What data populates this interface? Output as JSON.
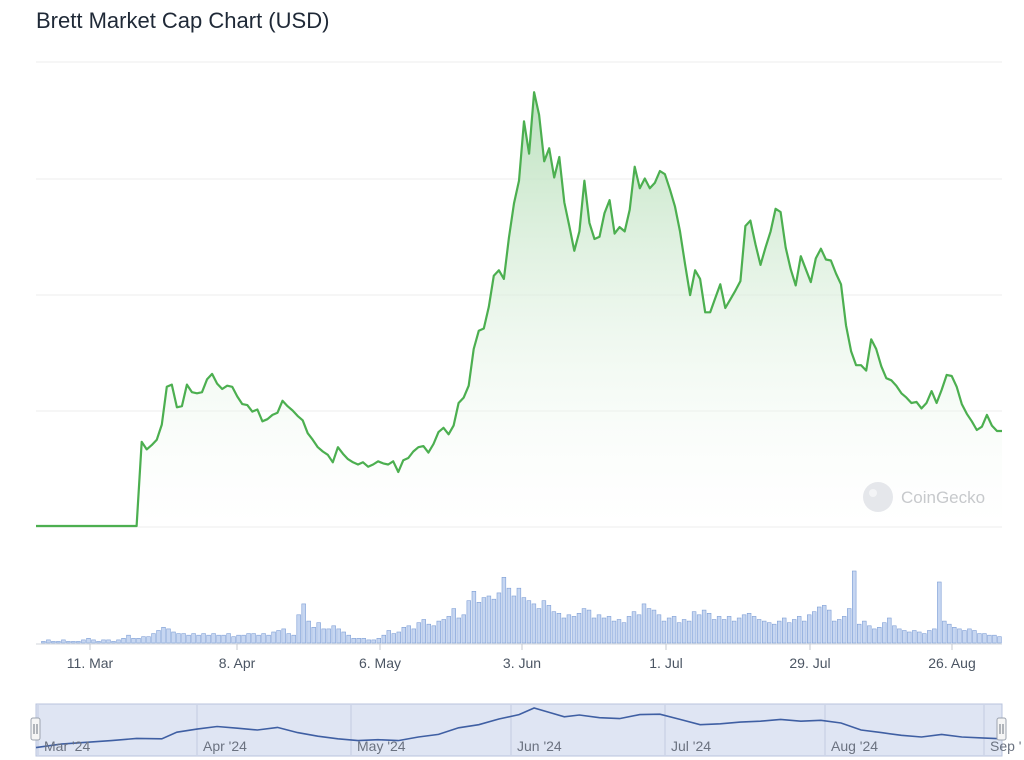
{
  "chart_title": "Brett Market Cap Chart (USD)",
  "watermark": "CoinGecko",
  "colors": {
    "line": "#4caf50",
    "area_top": "#c8e6c9",
    "volume_fill": "#c6d6f1",
    "volume_stroke": "#7e9ed6",
    "navigator_bg": "#dfe5f3",
    "navigator_line": "#3f5fa3",
    "grid": "#ececec"
  },
  "chart_data": {
    "type": "area",
    "title": "Brett Market Cap Chart (USD)",
    "x_ticks": [
      "11. Mar",
      "8. Apr",
      "6. May",
      "3. Jun",
      "1. Jul",
      "29. Jul",
      "26. Aug"
    ],
    "navigator_ticks": [
      "Mar '24",
      "Apr '24",
      "May '24",
      "Jun '24",
      "Jul '24",
      "Aug '24",
      "Sep '"
    ],
    "grid": true,
    "y_axis_labels_visible": false,
    "series": [
      {
        "values": [
          0,
          0,
          0,
          0,
          0,
          0,
          0,
          0,
          0,
          0,
          0,
          0,
          0,
          0,
          0,
          0,
          0,
          0,
          0,
          0,
          0,
          0,
          0,
          0,
          0,
          0,
          0,
          0,
          0,
          0,
          0,
          0,
          0,
          0,
          0,
          0,
          0,
          0,
          0,
          0,
          0,
          0,
          0,
          0,
          0,
          0,
          0,
          0,
          0,
          0,
          0,
          0,
          0,
          0,
          0,
          0,
          0,
          0,
          0,
          0,
          0,
          0,
          0,
          0,
          0,
          0,
          0,
          0,
          0,
          0,
          0,
          0,
          0,
          0,
          0,
          0,
          0,
          0,
          0,
          0,
          0,
          0,
          0,
          0,
          0,
          0,
          0,
          0,
          0,
          0,
          0,
          0,
          0,
          0,
          0,
          0,
          0,
          0,
          0,
          0,
          0,
          0,
          0,
          0,
          0,
          0,
          0,
          0,
          0,
          0,
          0,
          0,
          0,
          0,
          0,
          0,
          0,
          0,
          0,
          0,
          0,
          0,
          0,
          0,
          0,
          0,
          0,
          0,
          0
        ]
      }
    ],
    "points": [
      [
        0,
        0.0
      ],
      [
        20,
        0.0
      ],
      [
        21,
        0.78
      ],
      [
        22,
        0.71
      ],
      [
        23,
        0.75
      ],
      [
        24,
        0.8
      ],
      [
        25,
        0.94
      ],
      [
        26,
        1.29
      ],
      [
        27,
        1.31
      ],
      [
        28,
        1.1
      ],
      [
        29,
        1.11
      ],
      [
        30,
        1.31
      ],
      [
        31,
        1.24
      ],
      [
        32,
        1.23
      ],
      [
        33,
        1.24
      ],
      [
        34,
        1.36
      ],
      [
        35,
        1.41
      ],
      [
        36,
        1.32
      ],
      [
        37,
        1.27
      ],
      [
        38,
        1.3
      ],
      [
        39,
        1.29
      ],
      [
        40,
        1.2
      ],
      [
        41,
        1.13
      ],
      [
        42,
        1.12
      ],
      [
        43,
        1.06
      ],
      [
        44,
        1.08
      ],
      [
        45,
        0.97
      ],
      [
        46,
        0.99
      ],
      [
        47,
        1.03
      ],
      [
        48,
        1.05
      ],
      [
        49,
        1.16
      ],
      [
        50,
        1.11
      ],
      [
        51,
        1.07
      ],
      [
        52,
        1.02
      ],
      [
        53,
        0.98
      ],
      [
        54,
        0.86
      ],
      [
        55,
        0.8
      ],
      [
        56,
        0.73
      ],
      [
        57,
        0.69
      ],
      [
        58,
        0.66
      ],
      [
        59,
        0.59
      ],
      [
        60,
        0.73
      ],
      [
        61,
        0.67
      ],
      [
        62,
        0.62
      ],
      [
        63,
        0.59
      ],
      [
        64,
        0.57
      ],
      [
        65,
        0.59
      ],
      [
        66,
        0.55
      ],
      [
        67,
        0.57
      ],
      [
        68,
        0.6
      ],
      [
        69,
        0.58
      ],
      [
        70,
        0.57
      ],
      [
        71,
        0.6
      ],
      [
        72,
        0.5
      ],
      [
        73,
        0.61
      ],
      [
        74,
        0.63
      ],
      [
        75,
        0.69
      ],
      [
        76,
        0.73
      ],
      [
        77,
        0.74
      ],
      [
        78,
        0.68
      ],
      [
        79,
        0.76
      ],
      [
        80,
        0.87
      ],
      [
        81,
        0.91
      ],
      [
        82,
        0.85
      ],
      [
        83,
        0.93
      ],
      [
        84,
        1.14
      ],
      [
        85,
        1.19
      ],
      [
        86,
        1.3
      ],
      [
        87,
        1.64
      ],
      [
        88,
        1.81
      ],
      [
        89,
        1.83
      ],
      [
        90,
        2.03
      ],
      [
        91,
        2.32
      ],
      [
        92,
        2.37
      ],
      [
        93,
        2.29
      ],
      [
        94,
        2.67
      ],
      [
        95,
        2.99
      ],
      [
        96,
        3.2
      ],
      [
        97,
        3.75
      ],
      [
        98,
        3.45
      ],
      [
        99,
        4.02
      ],
      [
        100,
        3.81
      ],
      [
        101,
        3.38
      ],
      [
        102,
        3.5
      ],
      [
        103,
        3.23
      ],
      [
        104,
        3.42
      ],
      [
        105,
        3.0
      ],
      [
        106,
        2.78
      ],
      [
        107,
        2.55
      ],
      [
        108,
        2.73
      ],
      [
        109,
        3.2
      ],
      [
        110,
        2.81
      ],
      [
        111,
        2.66
      ],
      [
        112,
        2.68
      ],
      [
        113,
        2.9
      ],
      [
        114,
        3.02
      ],
      [
        115,
        2.71
      ],
      [
        116,
        2.77
      ],
      [
        117,
        2.73
      ],
      [
        118,
        2.93
      ],
      [
        119,
        3.33
      ],
      [
        120,
        3.13
      ],
      [
        121,
        3.22
      ],
      [
        122,
        3.13
      ],
      [
        123,
        3.18
      ],
      [
        124,
        3.29
      ],
      [
        125,
        3.26
      ],
      [
        126,
        3.12
      ],
      [
        127,
        2.96
      ],
      [
        128,
        2.73
      ],
      [
        129,
        2.43
      ],
      [
        130,
        2.14
      ],
      [
        131,
        2.37
      ],
      [
        132,
        2.29
      ],
      [
        133,
        1.98
      ],
      [
        134,
        1.98
      ],
      [
        135,
        2.11
      ],
      [
        136,
        2.24
      ],
      [
        137,
        2.02
      ],
      [
        138,
        2.1
      ],
      [
        139,
        2.18
      ],
      [
        140,
        2.27
      ],
      [
        141,
        2.78
      ],
      [
        142,
        2.83
      ],
      [
        143,
        2.61
      ],
      [
        144,
        2.42
      ],
      [
        145,
        2.58
      ],
      [
        146,
        2.73
      ],
      [
        147,
        2.94
      ],
      [
        148,
        2.91
      ],
      [
        149,
        2.58
      ],
      [
        150,
        2.38
      ],
      [
        151,
        2.23
      ],
      [
        152,
        2.5
      ],
      [
        153,
        2.38
      ],
      [
        154,
        2.26
      ],
      [
        155,
        2.48
      ],
      [
        156,
        2.57
      ],
      [
        157,
        2.47
      ],
      [
        158,
        2.46
      ],
      [
        159,
        2.34
      ],
      [
        160,
        2.24
      ],
      [
        161,
        1.86
      ],
      [
        162,
        1.62
      ],
      [
        163,
        1.49
      ],
      [
        164,
        1.49
      ],
      [
        165,
        1.44
      ],
      [
        166,
        1.73
      ],
      [
        167,
        1.64
      ],
      [
        168,
        1.48
      ],
      [
        169,
        1.37
      ],
      [
        170,
        1.35
      ],
      [
        171,
        1.3
      ],
      [
        172,
        1.23
      ],
      [
        173,
        1.19
      ],
      [
        174,
        1.14
      ],
      [
        175,
        1.15
      ],
      [
        176,
        1.09
      ],
      [
        177,
        1.14
      ],
      [
        178,
        1.25
      ],
      [
        179,
        1.14
      ],
      [
        180,
        1.26
      ],
      [
        181,
        1.4
      ],
      [
        182,
        1.39
      ],
      [
        183,
        1.29
      ],
      [
        184,
        1.13
      ],
      [
        185,
        1.04
      ],
      [
        186,
        0.97
      ],
      [
        187,
        0.89
      ],
      [
        188,
        0.92
      ],
      [
        189,
        1.03
      ],
      [
        190,
        0.93
      ],
      [
        191,
        0.88
      ],
      [
        192,
        0.88
      ]
    ],
    "volume": [
      0,
      1,
      2,
      1,
      1,
      2,
      1,
      1,
      1,
      2,
      3,
      2,
      1,
      2,
      2,
      1,
      2,
      3,
      5,
      3,
      3,
      4,
      4,
      6,
      8,
      10,
      9,
      7,
      6,
      6,
      5,
      6,
      5,
      6,
      5,
      6,
      5,
      5,
      6,
      4,
      5,
      5,
      6,
      6,
      5,
      6,
      5,
      7,
      8,
      9,
      6,
      5,
      18,
      25,
      14,
      10,
      13,
      9,
      9,
      11,
      9,
      7,
      5,
      3,
      3,
      3,
      2,
      2,
      3,
      5,
      8,
      6,
      7,
      10,
      11,
      9,
      13,
      15,
      12,
      11,
      14,
      15,
      17,
      22,
      16,
      18,
      27,
      33,
      26,
      29,
      30,
      28,
      32,
      42,
      35,
      30,
      35,
      29,
      27,
      25,
      22,
      27,
      24,
      20,
      19,
      16,
      18,
      17,
      19,
      22,
      21,
      16,
      18,
      16,
      17,
      14,
      15,
      13,
      17,
      20,
      18,
      25,
      22,
      21,
      18,
      14,
      16,
      17,
      13,
      15,
      14,
      20,
      18,
      21,
      19,
      15,
      17,
      15,
      17,
      14,
      16,
      18,
      19,
      17,
      15,
      14,
      13,
      12,
      14,
      16,
      13,
      15,
      17,
      14,
      18,
      20,
      23,
      24,
      21,
      14,
      15,
      17,
      22,
      46,
      12,
      14,
      11,
      9,
      10,
      13,
      16,
      11,
      9,
      8,
      7,
      8,
      7,
      6,
      8,
      9,
      39,
      14,
      12,
      10,
      9,
      8,
      9,
      8,
      6,
      6,
      5,
      5,
      4
    ],
    "navigator": [
      [
        0,
        0.1
      ],
      [
        5,
        0.18
      ],
      [
        10,
        0.22
      ],
      [
        15,
        0.26
      ],
      [
        20,
        0.31
      ],
      [
        25,
        0.3
      ],
      [
        28,
        0.45
      ],
      [
        32,
        0.52
      ],
      [
        36,
        0.58
      ],
      [
        40,
        0.54
      ],
      [
        44,
        0.5
      ],
      [
        48,
        0.56
      ],
      [
        52,
        0.44
      ],
      [
        56,
        0.36
      ],
      [
        60,
        0.3
      ],
      [
        64,
        0.26
      ],
      [
        68,
        0.28
      ],
      [
        72,
        0.26
      ],
      [
        76,
        0.34
      ],
      [
        80,
        0.4
      ],
      [
        84,
        0.55
      ],
      [
        88,
        0.62
      ],
      [
        92,
        0.75
      ],
      [
        96,
        0.85
      ],
      [
        99,
        1.0
      ],
      [
        102,
        0.9
      ],
      [
        105,
        0.8
      ],
      [
        108,
        0.84
      ],
      [
        112,
        0.78
      ],
      [
        116,
        0.76
      ],
      [
        120,
        0.85
      ],
      [
        124,
        0.86
      ],
      [
        128,
        0.74
      ],
      [
        132,
        0.62
      ],
      [
        136,
        0.64
      ],
      [
        140,
        0.68
      ],
      [
        144,
        0.7
      ],
      [
        148,
        0.74
      ],
      [
        152,
        0.7
      ],
      [
        156,
        0.72
      ],
      [
        160,
        0.66
      ],
      [
        164,
        0.5
      ],
      [
        168,
        0.44
      ],
      [
        172,
        0.38
      ],
      [
        176,
        0.34
      ],
      [
        180,
        0.4
      ],
      [
        184,
        0.34
      ],
      [
        188,
        0.32
      ],
      [
        192,
        0.3
      ]
    ]
  }
}
